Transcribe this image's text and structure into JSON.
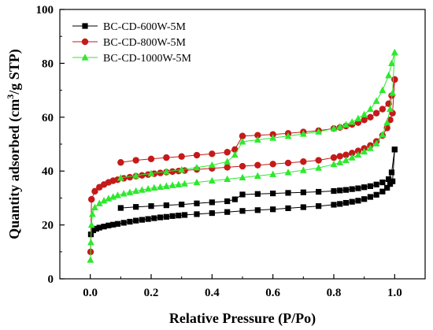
{
  "chart_data": {
    "type": "scatter",
    "title": "",
    "xlabel": "Relative Pressure (P/Po)",
    "ylabel_main": "Quantity adsorbed (cm",
    "ylabel_sup": "3",
    "ylabel_tail": "/g STP)",
    "xlim": [
      -0.1,
      1.1
    ],
    "ylim": [
      0,
      100
    ],
    "xticks": [
      0.0,
      0.2,
      0.4,
      0.6,
      0.8,
      1.0
    ],
    "xtick_labels": [
      "0.0",
      "0.2",
      "0.4",
      "0.6",
      "0.8",
      "1.0"
    ],
    "yticks": [
      0,
      20,
      40,
      60,
      80,
      100
    ],
    "ytick_labels": [
      "0",
      "20",
      "40",
      "60",
      "80",
      "100"
    ],
    "grid": false,
    "legend_position": "top-left",
    "series": [
      {
        "name": "BC-CD-600W-5M",
        "color": "#000000",
        "marker": "square",
        "adsorption": [
          [
            0.002,
            16.5
          ],
          [
            0.01,
            18.0
          ],
          [
            0.02,
            18.6
          ],
          [
            0.03,
            19.0
          ],
          [
            0.045,
            19.4
          ],
          [
            0.06,
            19.8
          ],
          [
            0.075,
            20.1
          ],
          [
            0.09,
            20.4
          ],
          [
            0.11,
            20.8
          ],
          [
            0.13,
            21.2
          ],
          [
            0.15,
            21.6
          ],
          [
            0.17,
            21.9
          ],
          [
            0.19,
            22.2
          ],
          [
            0.21,
            22.5
          ],
          [
            0.23,
            22.8
          ],
          [
            0.25,
            23.0
          ],
          [
            0.27,
            23.3
          ],
          [
            0.29,
            23.5
          ],
          [
            0.31,
            23.7
          ],
          [
            0.35,
            24.0
          ],
          [
            0.4,
            24.4
          ],
          [
            0.45,
            24.8
          ],
          [
            0.5,
            25.2
          ],
          [
            0.55,
            25.5
          ],
          [
            0.6,
            25.8
          ],
          [
            0.65,
            26.2
          ],
          [
            0.7,
            26.6
          ],
          [
            0.75,
            27.0
          ],
          [
            0.8,
            27.5
          ],
          [
            0.82,
            27.8
          ],
          [
            0.84,
            28.2
          ],
          [
            0.86,
            28.6
          ],
          [
            0.88,
            29.0
          ],
          [
            0.9,
            29.6
          ],
          [
            0.92,
            30.4
          ],
          [
            0.94,
            31.2
          ],
          [
            0.96,
            32.4
          ],
          [
            0.975,
            33.8
          ],
          [
            0.985,
            35.2
          ],
          [
            0.993,
            36.2
          ],
          [
            1.0,
            48.0
          ]
        ],
        "desorption": [
          [
            1.0,
            48.0
          ],
          [
            0.99,
            39.5
          ],
          [
            0.98,
            37.0
          ],
          [
            0.96,
            35.8
          ],
          [
            0.94,
            35.0
          ],
          [
            0.92,
            34.4
          ],
          [
            0.9,
            34.0
          ],
          [
            0.88,
            33.6
          ],
          [
            0.86,
            33.3
          ],
          [
            0.84,
            33.0
          ],
          [
            0.82,
            32.8
          ],
          [
            0.8,
            32.6
          ],
          [
            0.75,
            32.3
          ],
          [
            0.7,
            32.1
          ],
          [
            0.65,
            31.9
          ],
          [
            0.6,
            31.7
          ],
          [
            0.55,
            31.5
          ],
          [
            0.5,
            31.3
          ],
          [
            0.475,
            29.5
          ],
          [
            0.45,
            28.8
          ],
          [
            0.4,
            28.4
          ],
          [
            0.35,
            28.0
          ],
          [
            0.3,
            27.6
          ],
          [
            0.25,
            27.3
          ],
          [
            0.2,
            27.0
          ],
          [
            0.15,
            26.7
          ],
          [
            0.1,
            26.3
          ]
        ]
      },
      {
        "name": "BC-CD-800W-5M",
        "color": "#c41a1a",
        "marker": "circle",
        "adsorption": [
          [
            0.001,
            10.0
          ],
          [
            0.004,
            29.5
          ],
          [
            0.015,
            32.5
          ],
          [
            0.03,
            34.0
          ],
          [
            0.045,
            35.0
          ],
          [
            0.06,
            35.8
          ],
          [
            0.075,
            36.4
          ],
          [
            0.09,
            36.8
          ],
          [
            0.11,
            37.3
          ],
          [
            0.13,
            37.7
          ],
          [
            0.15,
            38.1
          ],
          [
            0.17,
            38.4
          ],
          [
            0.19,
            38.7
          ],
          [
            0.21,
            39.0
          ],
          [
            0.23,
            39.3
          ],
          [
            0.25,
            39.6
          ],
          [
            0.27,
            39.8
          ],
          [
            0.29,
            40.0
          ],
          [
            0.31,
            40.2
          ],
          [
            0.35,
            40.6
          ],
          [
            0.4,
            41.0
          ],
          [
            0.45,
            41.4
          ],
          [
            0.5,
            41.8
          ],
          [
            0.55,
            42.2
          ],
          [
            0.6,
            42.6
          ],
          [
            0.65,
            43.0
          ],
          [
            0.7,
            43.5
          ],
          [
            0.75,
            44.0
          ],
          [
            0.8,
            45.0
          ],
          [
            0.82,
            45.5
          ],
          [
            0.84,
            46.0
          ],
          [
            0.86,
            46.7
          ],
          [
            0.88,
            47.5
          ],
          [
            0.9,
            48.4
          ],
          [
            0.92,
            49.5
          ],
          [
            0.94,
            51.0
          ],
          [
            0.96,
            53.2
          ],
          [
            0.975,
            56.0
          ],
          [
            0.985,
            59.0
          ],
          [
            0.993,
            61.5
          ],
          [
            1.0,
            74.0
          ]
        ],
        "desorption": [
          [
            1.0,
            74.0
          ],
          [
            0.99,
            68.0
          ],
          [
            0.98,
            65.0
          ],
          [
            0.96,
            63.0
          ],
          [
            0.94,
            61.5
          ],
          [
            0.92,
            60.0
          ],
          [
            0.9,
            59.0
          ],
          [
            0.88,
            58.0
          ],
          [
            0.86,
            57.3
          ],
          [
            0.84,
            56.7
          ],
          [
            0.82,
            56.2
          ],
          [
            0.8,
            55.8
          ],
          [
            0.75,
            55.0
          ],
          [
            0.7,
            54.5
          ],
          [
            0.65,
            54.0
          ],
          [
            0.6,
            53.6
          ],
          [
            0.55,
            53.3
          ],
          [
            0.5,
            53.0
          ],
          [
            0.475,
            48.0
          ],
          [
            0.45,
            47.0
          ],
          [
            0.4,
            46.4
          ],
          [
            0.35,
            45.9
          ],
          [
            0.3,
            45.4
          ],
          [
            0.25,
            45.0
          ],
          [
            0.2,
            44.5
          ],
          [
            0.15,
            44.0
          ],
          [
            0.1,
            43.2
          ]
        ]
      },
      {
        "name": "BC-CD-1000W-5M",
        "color": "#2ee82e",
        "marker": "triangle",
        "adsorption": [
          [
            0.0005,
            7.0
          ],
          [
            0.002,
            13.5
          ],
          [
            0.004,
            20.0
          ],
          [
            0.007,
            24.0
          ],
          [
            0.015,
            26.5
          ],
          [
            0.03,
            28.0
          ],
          [
            0.045,
            29.0
          ],
          [
            0.06,
            29.8
          ],
          [
            0.075,
            30.4
          ],
          [
            0.09,
            31.0
          ],
          [
            0.11,
            31.6
          ],
          [
            0.13,
            32.1
          ],
          [
            0.15,
            32.6
          ],
          [
            0.17,
            33.0
          ],
          [
            0.19,
            33.4
          ],
          [
            0.21,
            33.8
          ],
          [
            0.23,
            34.1
          ],
          [
            0.25,
            34.4
          ],
          [
            0.27,
            34.7
          ],
          [
            0.29,
            35.0
          ],
          [
            0.31,
            35.3
          ],
          [
            0.35,
            35.8
          ],
          [
            0.4,
            36.4
          ],
          [
            0.45,
            37.0
          ],
          [
            0.5,
            37.6
          ],
          [
            0.55,
            38.2
          ],
          [
            0.6,
            38.8
          ],
          [
            0.65,
            39.5
          ],
          [
            0.7,
            40.3
          ],
          [
            0.75,
            41.2
          ],
          [
            0.8,
            42.5
          ],
          [
            0.82,
            43.2
          ],
          [
            0.84,
            44.0
          ],
          [
            0.86,
            45.0
          ],
          [
            0.88,
            46.0
          ],
          [
            0.9,
            47.2
          ],
          [
            0.92,
            48.5
          ],
          [
            0.94,
            50.2
          ],
          [
            0.96,
            53.5
          ],
          [
            0.975,
            58.0
          ],
          [
            0.985,
            63.0
          ],
          [
            0.993,
            69.0
          ],
          [
            1.0,
            84.0
          ]
        ],
        "desorption": [
          [
            1.0,
            84.0
          ],
          [
            0.99,
            80.0
          ],
          [
            0.98,
            75.5
          ],
          [
            0.96,
            70.0
          ],
          [
            0.94,
            66.0
          ],
          [
            0.92,
            63.0
          ],
          [
            0.9,
            61.0
          ],
          [
            0.88,
            59.5
          ],
          [
            0.86,
            58.2
          ],
          [
            0.84,
            57.2
          ],
          [
            0.82,
            56.4
          ],
          [
            0.8,
            55.8
          ],
          [
            0.75,
            54.6
          ],
          [
            0.7,
            53.8
          ],
          [
            0.65,
            53.0
          ],
          [
            0.6,
            52.3
          ],
          [
            0.55,
            51.6
          ],
          [
            0.5,
            50.9
          ],
          [
            0.475,
            46.0
          ],
          [
            0.45,
            43.5
          ],
          [
            0.4,
            42.2
          ],
          [
            0.35,
            41.3
          ],
          [
            0.3,
            40.5
          ],
          [
            0.25,
            39.8
          ],
          [
            0.2,
            39.1
          ],
          [
            0.15,
            38.3
          ],
          [
            0.1,
            37.5
          ]
        ]
      }
    ]
  }
}
